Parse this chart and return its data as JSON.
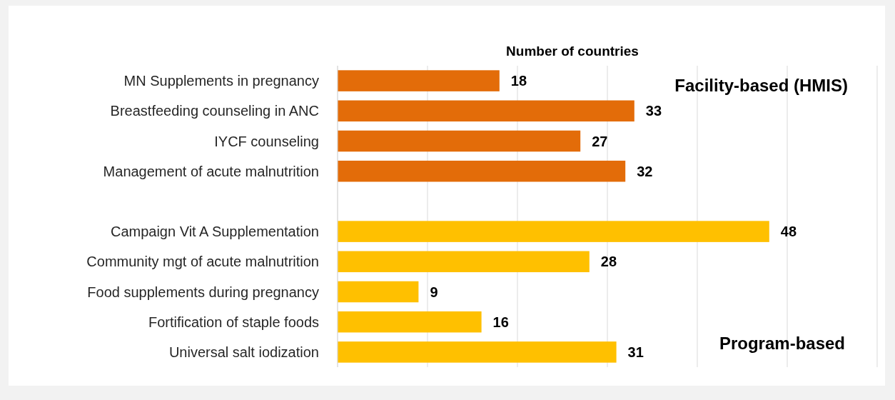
{
  "chart_data": {
    "type": "bar",
    "orientation": "horizontal",
    "xlabel": "Number of countries",
    "categories": [
      "MN Supplements in pregnancy",
      "Breastfeeding counseling in ANC",
      "IYCF counseling",
      "Management of acute malnutrition",
      null,
      "Campaign Vit A Supplementation",
      "Community mgt of acute malnutrition",
      "Food supplements during pregnancy",
      "Fortification of staple foods",
      "Universal salt iodization"
    ],
    "values": [
      18,
      33,
      27,
      32,
      null,
      48,
      28,
      9,
      16,
      31
    ],
    "colors": [
      "#e36c09",
      "#e36c09",
      "#e36c09",
      "#e36c09",
      null,
      "#ffc000",
      "#ffc000",
      "#ffc000",
      "#ffc000",
      "#ffc000"
    ],
    "xlim": [
      0,
      60
    ],
    "xticks": [
      {
        "value": 0,
        "label": null
      },
      {
        "value": 10,
        "label": null
      },
      {
        "value": 20,
        "label": null
      },
      {
        "value": 30,
        "label": null
      },
      {
        "value": 40,
        "label": null
      },
      {
        "value": 50,
        "label": null
      },
      {
        "value": 60,
        "label": null
      }
    ],
    "tick_labels": "y",
    "grid": "x",
    "data_labels": true,
    "annotations": [
      "Facility-based (HMIS)",
      "Program-based"
    ]
  }
}
